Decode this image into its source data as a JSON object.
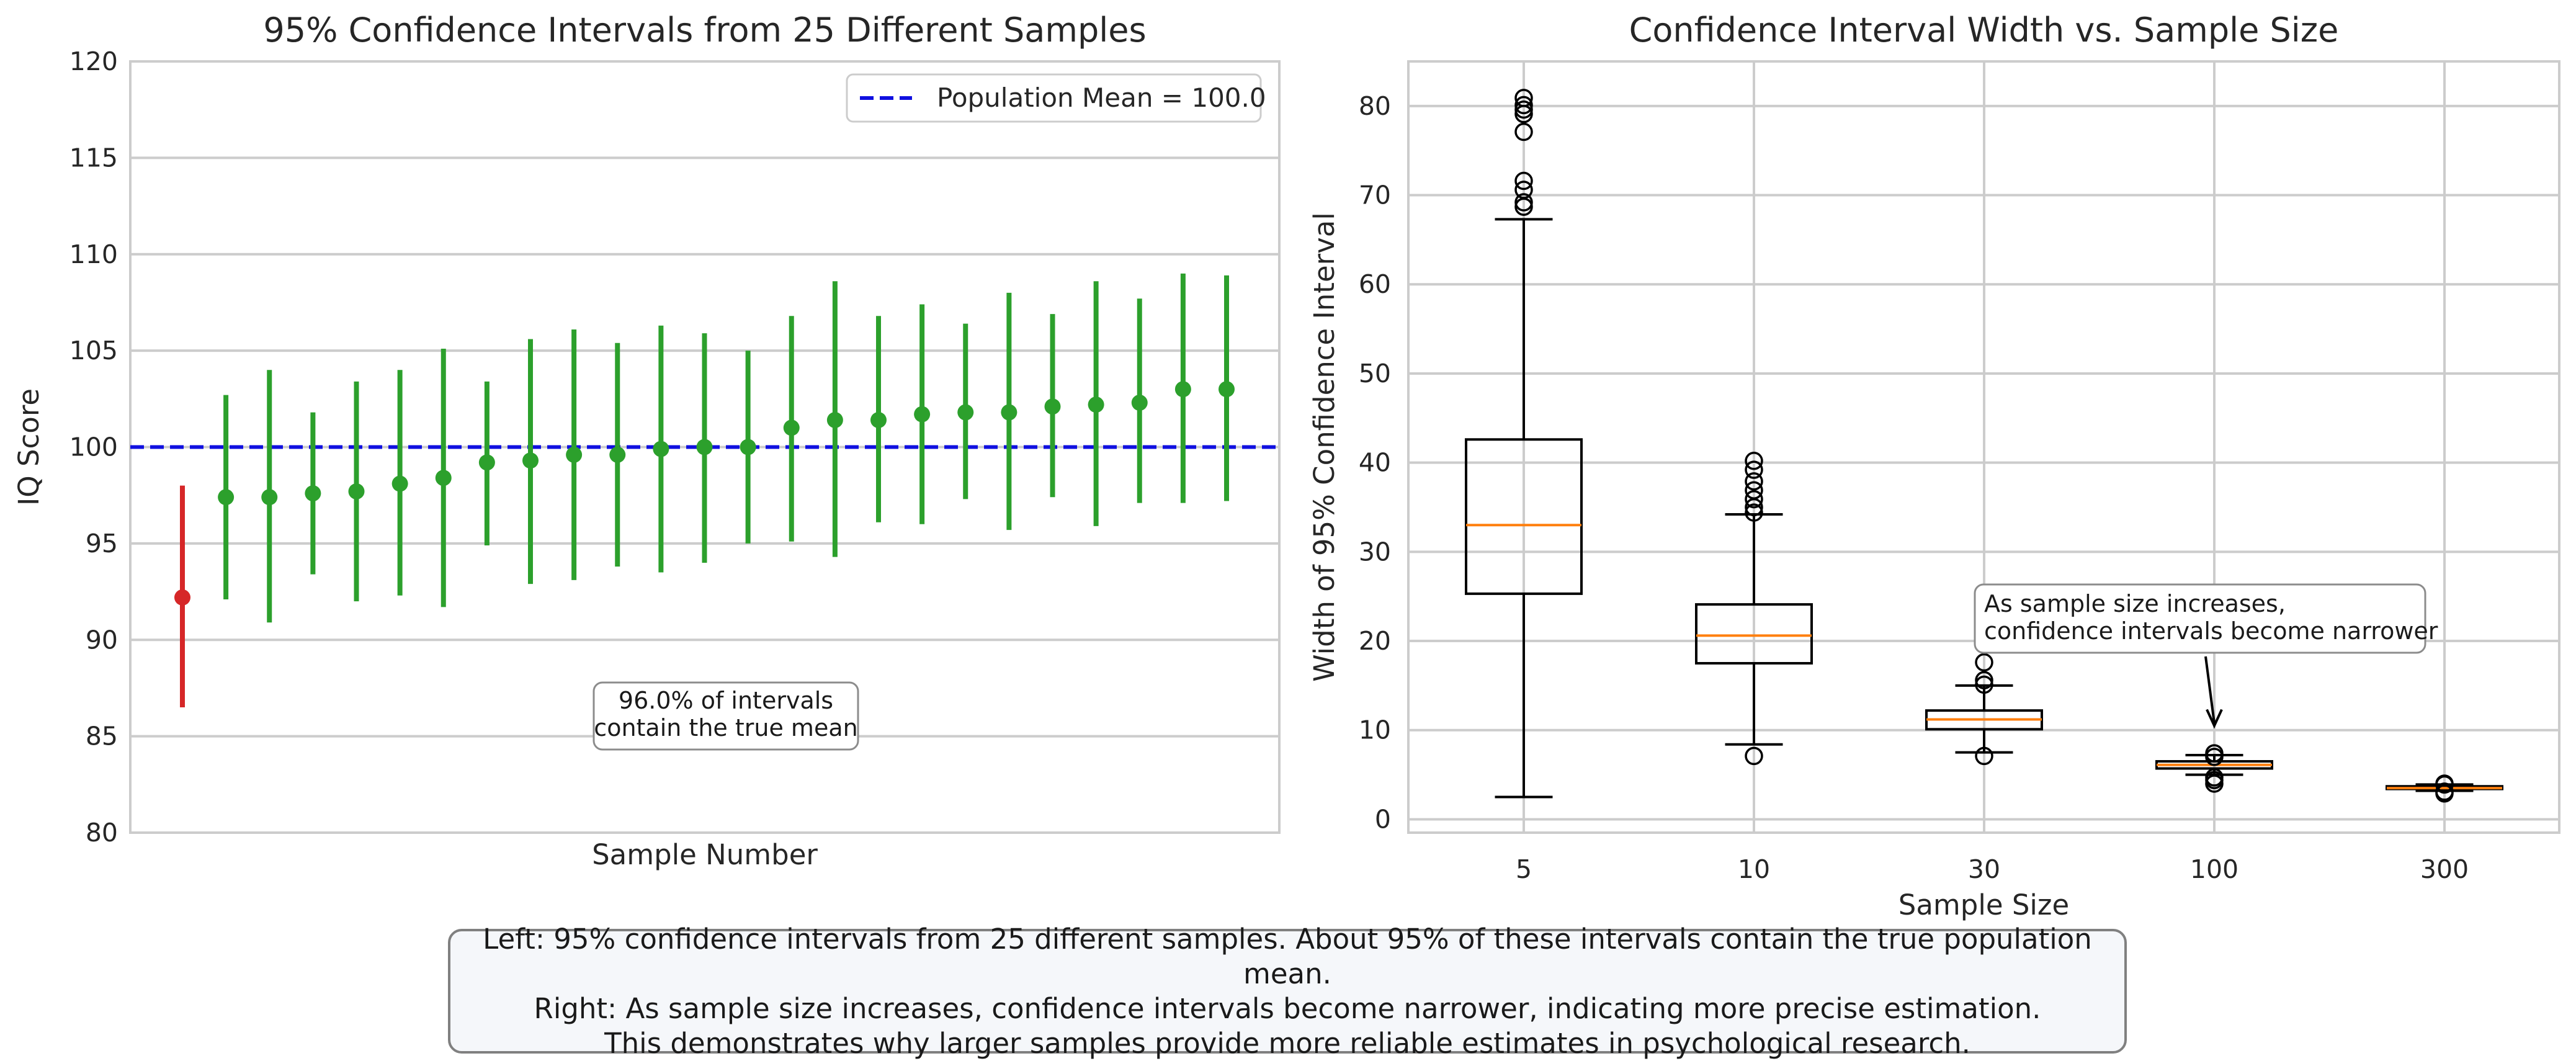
{
  "chart_data": [
    {
      "type": "errorbar",
      "title": "95% Confidence Intervals from 25 Different Samples",
      "xlabel": "Sample Number",
      "ylabel": "IQ Score",
      "ylim": [
        80,
        120
      ],
      "yticks": [
        80,
        85,
        90,
        95,
        100,
        105,
        110,
        115,
        120
      ],
      "population_mean": 100.0,
      "legend": {
        "label": "Population Mean = 100.0",
        "placement": "top-right"
      },
      "colors": {
        "contains_mean": "#2ca02c",
        "misses_mean": "#d62728",
        "mean_line": "#1010e0"
      },
      "intervals": [
        {
          "mean": 92.2,
          "lower": 86.5,
          "upper": 98.0
        },
        {
          "mean": 97.4,
          "lower": 92.1,
          "upper": 102.7
        },
        {
          "mean": 97.4,
          "lower": 90.9,
          "upper": 104.0
        },
        {
          "mean": 97.6,
          "lower": 93.4,
          "upper": 101.8
        },
        {
          "mean": 97.7,
          "lower": 92.0,
          "upper": 103.4
        },
        {
          "mean": 98.1,
          "lower": 92.3,
          "upper": 104.0
        },
        {
          "mean": 98.4,
          "lower": 91.7,
          "upper": 105.1
        },
        {
          "mean": 99.2,
          "lower": 94.9,
          "upper": 103.4
        },
        {
          "mean": 99.3,
          "lower": 92.9,
          "upper": 105.6
        },
        {
          "mean": 99.6,
          "lower": 93.1,
          "upper": 106.1
        },
        {
          "mean": 99.6,
          "lower": 93.8,
          "upper": 105.4
        },
        {
          "mean": 99.9,
          "lower": 93.5,
          "upper": 106.3
        },
        {
          "mean": 100.0,
          "lower": 94.0,
          "upper": 105.9
        },
        {
          "mean": 100.0,
          "lower": 95.0,
          "upper": 105.0
        },
        {
          "mean": 101.0,
          "lower": 95.1,
          "upper": 106.8
        },
        {
          "mean": 101.4,
          "lower": 94.3,
          "upper": 108.6
        },
        {
          "mean": 101.4,
          "lower": 96.1,
          "upper": 106.8
        },
        {
          "mean": 101.7,
          "lower": 96.0,
          "upper": 107.4
        },
        {
          "mean": 101.8,
          "lower": 97.3,
          "upper": 106.4
        },
        {
          "mean": 101.8,
          "lower": 95.7,
          "upper": 108.0
        },
        {
          "mean": 102.1,
          "lower": 97.4,
          "upper": 106.9
        },
        {
          "mean": 102.2,
          "lower": 95.9,
          "upper": 108.6
        },
        {
          "mean": 102.3,
          "lower": 97.1,
          "upper": 107.7
        },
        {
          "mean": 103.0,
          "lower": 97.1,
          "upper": 109.0
        },
        {
          "mean": 103.0,
          "lower": 97.2,
          "upper": 108.9
        }
      ],
      "annotation": "96.0% of intervals\ncontain the true mean"
    },
    {
      "type": "boxplot",
      "title": "Confidence Interval Width vs. Sample Size",
      "xlabel": "Sample Size",
      "ylabel": "Width of 95% Confidence Interval",
      "ylim": [
        -1.5,
        85
      ],
      "yticks": [
        0,
        10,
        20,
        30,
        40,
        50,
        60,
        70,
        80
      ],
      "colors": {
        "median": "#ff7f0e",
        "box": "#000000"
      },
      "boxes": [
        {
          "label": "5",
          "whisker_low": 2.5,
          "q1": 25.3,
          "median": 33.0,
          "q3": 42.6,
          "whisker_high": 67.3,
          "outliers": [
            68.7,
            69.2,
            70.6,
            71.6,
            77.1,
            79.1,
            79.6,
            80.1,
            80.9
          ]
        },
        {
          "label": "10",
          "whisker_low": 8.4,
          "q1": 17.5,
          "median": 20.6,
          "q3": 24.1,
          "whisker_high": 34.2,
          "outliers": [
            7.1,
            34.4,
            35.0,
            35.9,
            36.9,
            37.9,
            39.2,
            40.2
          ]
        },
        {
          "label": "30",
          "whisker_low": 7.5,
          "q1": 10.1,
          "median": 11.2,
          "q3": 12.2,
          "whisker_high": 15.0,
          "outliers": [
            7.1,
            15.1,
            15.6,
            17.6
          ]
        },
        {
          "label": "100",
          "whisker_low": 5.0,
          "q1": 5.7,
          "median": 6.1,
          "q3": 6.5,
          "whisker_high": 7.2,
          "outliers": [
            4.0,
            4.4,
            4.7,
            7.0,
            7.4
          ]
        },
        {
          "label": "300",
          "whisker_low": 3.2,
          "q1": 3.4,
          "median": 3.5,
          "q3": 3.7,
          "whisker_high": 3.9,
          "outliers": [
            2.9,
            3.1,
            3.9,
            4.0
          ]
        }
      ],
      "annotation": {
        "text": "As sample size increases,\nconfidence intervals become narrower",
        "arrow_to": {
          "category": "100",
          "value": 10.5
        }
      }
    }
  ],
  "caption": {
    "line1": "Left: 95% confidence intervals from 25 different samples. About 95% of these intervals contain the true population mean.",
    "line2": "Right: As sample size increases, confidence intervals become narrower, indicating more precise estimation.",
    "line3": "This demonstrates why larger samples provide more reliable estimates in psychological research."
  }
}
